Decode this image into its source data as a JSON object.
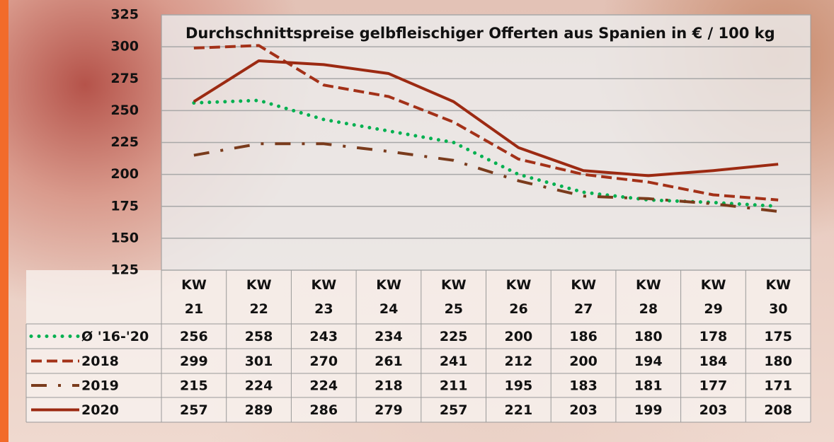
{
  "chart_data": {
    "type": "line",
    "title": "Durchschnittspreise gelbfleischiger Offerten aus Spanien in € / 100 kg",
    "categories": [
      "KW 21",
      "KW 22",
      "KW 23",
      "KW 24",
      "KW 25",
      "KW 26",
      "KW 27",
      "KW 28",
      "KW 29",
      "KW 30"
    ],
    "series": [
      {
        "name": "Ø '16-'20",
        "color": "#00b050",
        "values": [
          256,
          258,
          243,
          234,
          225,
          200,
          186,
          180,
          178,
          175
        ]
      },
      {
        "name": "2018",
        "color": "#a33118",
        "values": [
          299,
          301,
          270,
          261,
          241,
          212,
          200,
          194,
          184,
          180
        ]
      },
      {
        "name": "2019",
        "color": "#7a3b1c",
        "values": [
          215,
          224,
          224,
          218,
          211,
          195,
          183,
          181,
          177,
          171
        ]
      },
      {
        "name": "2020",
        "color": "#9c2a12",
        "values": [
          257,
          289,
          286,
          279,
          257,
          221,
          203,
          199,
          203,
          208
        ]
      }
    ],
    "ylim": [
      125,
      325
    ],
    "yticks": [
      125,
      150,
      175,
      200,
      225,
      250,
      275,
      300,
      325
    ],
    "grid": true
  }
}
